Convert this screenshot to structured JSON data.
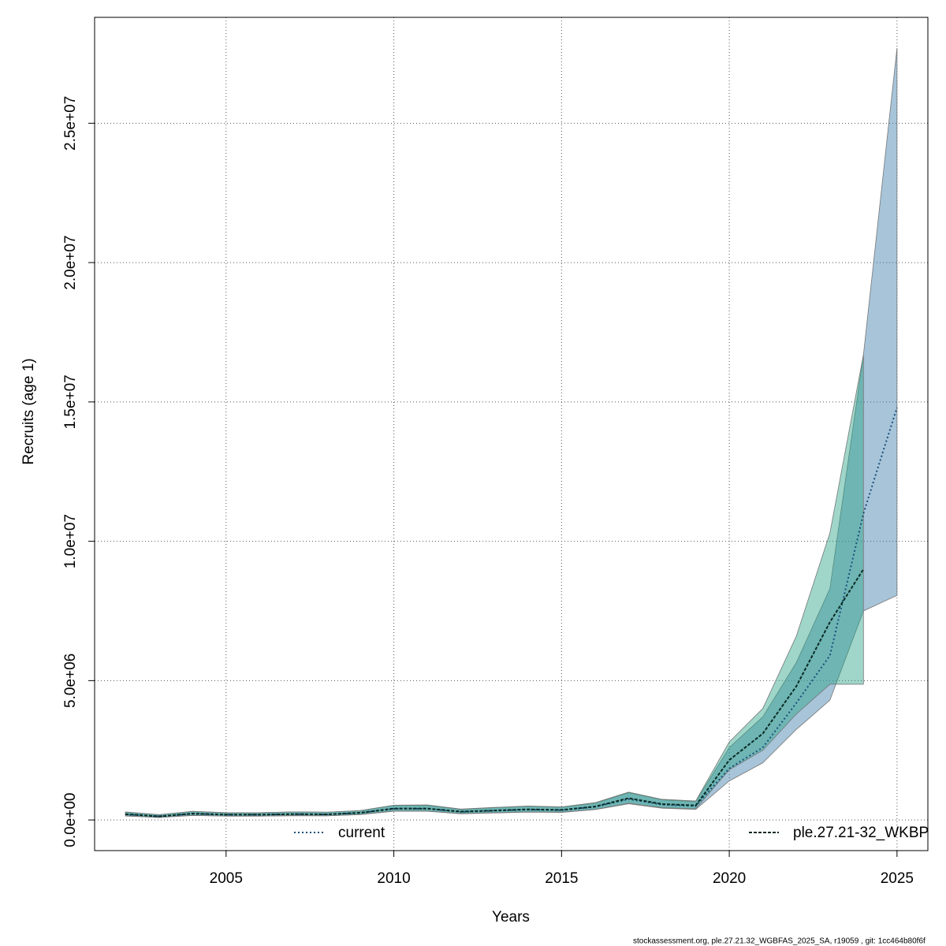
{
  "chart_data": {
    "type": "line_band",
    "x_label": "Years",
    "y_label": "Recruits (age 1)",
    "footer": "stockassessment.org, ple.27.21.32_WGBFAS_2025_SA, r19059 , git: 1cc464b80f6f",
    "x": [
      2002,
      2003,
      2004,
      2005,
      2006,
      2007,
      2008,
      2009,
      2010,
      2011,
      2012,
      2013,
      2014,
      2015,
      2016,
      2017,
      2018,
      2019,
      2020,
      2021,
      2022,
      2023,
      2024,
      2025
    ],
    "series": [
      {
        "name": "current",
        "color": "#3b7dab",
        "line_color": "#1a4f7a",
        "values": [
          200000,
          130000,
          220000,
          190000,
          190000,
          210000,
          200000,
          250000,
          400000,
          400000,
          290000,
          330000,
          370000,
          350000,
          470000,
          750000,
          550000,
          500000,
          1850000,
          2600000,
          4200000,
          5900000,
          11000000,
          14800000
        ],
        "low": [
          140000,
          90000,
          160000,
          140000,
          140000,
          150000,
          150000,
          190000,
          310000,
          310000,
          220000,
          250000,
          280000,
          270000,
          370000,
          580000,
          420000,
          380000,
          1400000,
          2050000,
          3250000,
          4300000,
          7500000,
          8060000
        ],
        "high": [
          280000,
          190000,
          300000,
          260000,
          260000,
          290000,
          280000,
          330000,
          520000,
          520000,
          380000,
          440000,
          490000,
          460000,
          600000,
          980000,
          720000,
          660000,
          2600000,
          3700000,
          5650000,
          8300000,
          16700000,
          27700000
        ]
      },
      {
        "name": "ple.27.21-32_WKBP",
        "color": "#2aa387",
        "line_color": "#0b2b24",
        "values": [
          210000,
          130000,
          230000,
          190000,
          190000,
          210000,
          200000,
          260000,
          410000,
          410000,
          300000,
          340000,
          380000,
          360000,
          480000,
          780000,
          570000,
          520000,
          2150000,
          3100000,
          4800000,
          7100000,
          9000000,
          null
        ],
        "low": [
          150000,
          90000,
          170000,
          140000,
          140000,
          160000,
          150000,
          200000,
          320000,
          320000,
          230000,
          260000,
          290000,
          280000,
          380000,
          600000,
          440000,
          400000,
          1800000,
          2500000,
          3800000,
          4870000,
          4870000,
          null
        ],
        "high": [
          290000,
          190000,
          310000,
          260000,
          260000,
          290000,
          280000,
          340000,
          530000,
          540000,
          390000,
          450000,
          500000,
          470000,
          620000,
          1000000,
          740000,
          680000,
          2800000,
          4000000,
          6600000,
          10300000,
          16700000,
          null
        ]
      }
    ],
    "xlim": [
      2001.08,
      2025.92
    ],
    "xticks": [
      2005,
      2010,
      2015,
      2020,
      2025
    ],
    "ylim": [
      -1100000,
      28800000
    ],
    "yticks": [
      {
        "value": 0,
        "label": "0.0e+00"
      },
      {
        "value": 5000000,
        "label": "5.0e+06"
      },
      {
        "value": 10000000,
        "label": "1.0e+07"
      },
      {
        "value": 15000000,
        "label": "1.5e+07"
      },
      {
        "value": 20000000,
        "label": "2.0e+07"
      },
      {
        "value": 25000000,
        "label": "2.5e+07"
      }
    ],
    "grid": true,
    "legend": "bottom"
  }
}
